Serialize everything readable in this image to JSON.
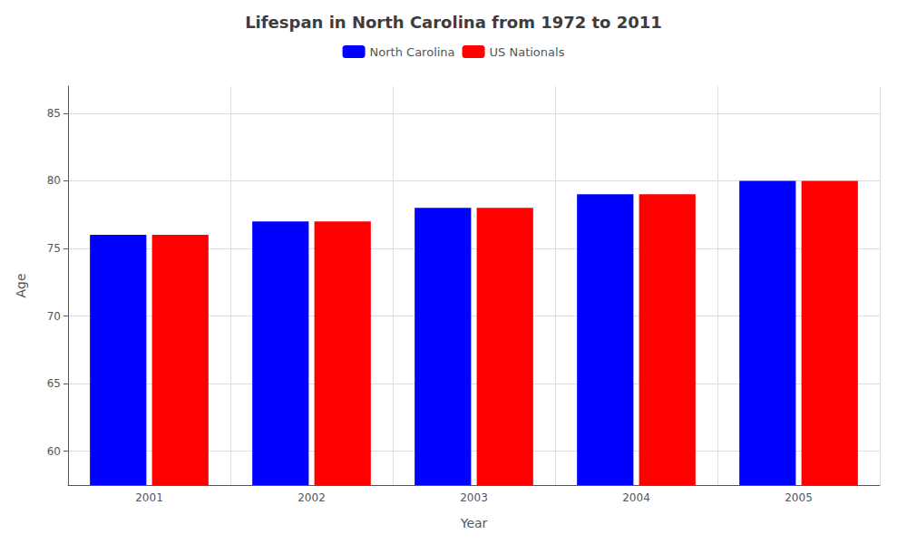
{
  "chart_data": {
    "type": "bar",
    "title": "Lifespan in North Carolina from 1972 to 2011",
    "x_label": "Year",
    "y_label": "Age",
    "categories": [
      "2001",
      "2002",
      "2003",
      "2004",
      "2005"
    ],
    "series": [
      {
        "name": "North Carolina",
        "color": "#0000ff",
        "values": [
          76,
          77,
          78,
          79,
          80
        ]
      },
      {
        "name": "US Nationals",
        "color": "#ff0000",
        "values": [
          76,
          77,
          78,
          79,
          80
        ]
      }
    ],
    "ylim": [
      57.5,
      87
    ],
    "yticks": [
      60,
      65,
      70,
      75,
      80,
      85
    ],
    "grid": true,
    "legend": "top"
  }
}
